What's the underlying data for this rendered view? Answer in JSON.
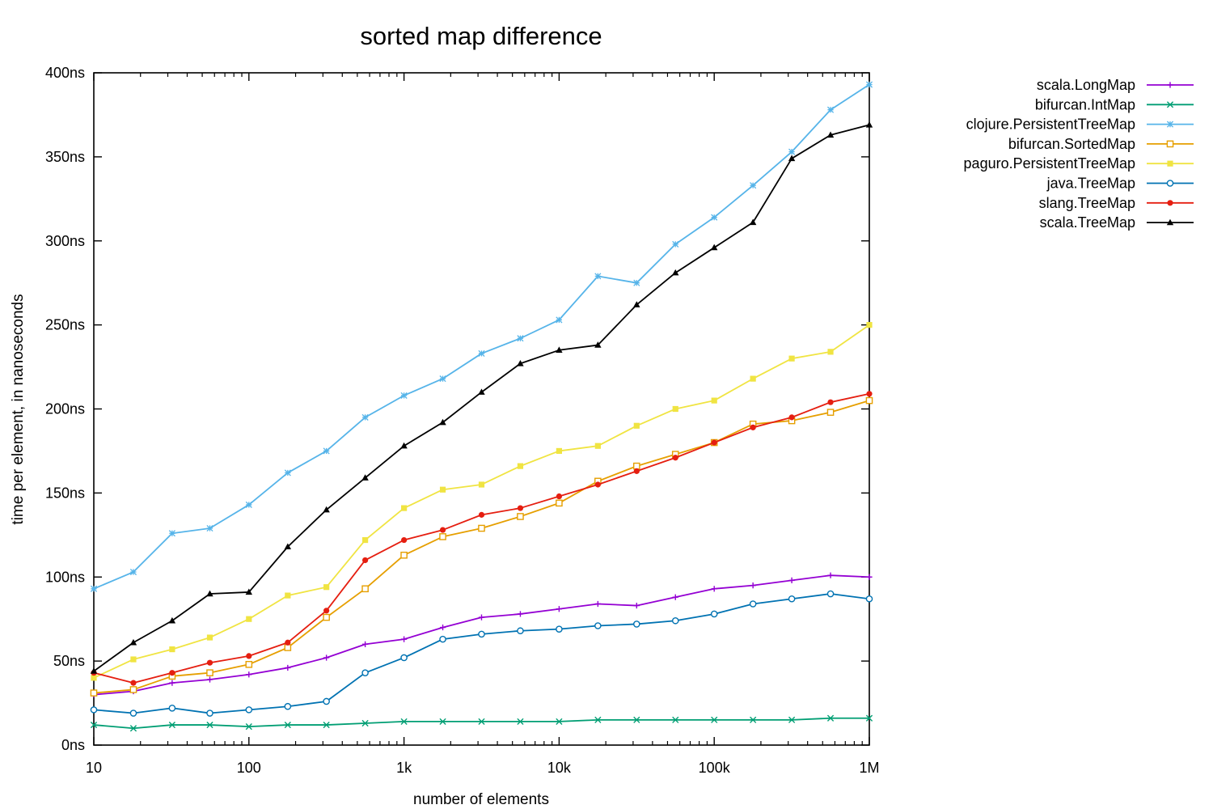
{
  "chart_data": {
    "type": "line",
    "title": "sorted map difference",
    "xlabel": "number of elements",
    "ylabel": "time per element, in nanoseconds",
    "x_scale": "log",
    "xlim": [
      10,
      1000000
    ],
    "ylim": [
      0,
      400
    ],
    "x_ticks": [
      {
        "value": 10,
        "label": "10"
      },
      {
        "value": 100,
        "label": "100"
      },
      {
        "value": 1000,
        "label": "1k"
      },
      {
        "value": 10000,
        "label": "10k"
      },
      {
        "value": 100000,
        "label": "100k"
      },
      {
        "value": 1000000,
        "label": "1M"
      }
    ],
    "y_ticks": [
      {
        "value": 0,
        "label": "0ns"
      },
      {
        "value": 50,
        "label": "50ns"
      },
      {
        "value": 100,
        "label": "100ns"
      },
      {
        "value": 150,
        "label": "150ns"
      },
      {
        "value": 200,
        "label": "200ns"
      },
      {
        "value": 250,
        "label": "250ns"
      },
      {
        "value": 300,
        "label": "300ns"
      },
      {
        "value": 350,
        "label": "350ns"
      },
      {
        "value": 400,
        "label": "400ns"
      }
    ],
    "grid": false,
    "legend_position": "outside-right-top",
    "x": [
      10,
      18,
      32,
      56,
      100,
      178,
      316,
      562,
      1000,
      1778,
      3162,
      5623,
      10000,
      17783,
      31623,
      56234,
      100000,
      177828,
      316228,
      562341,
      1000000
    ],
    "series": [
      {
        "name": "scala.LongMap",
        "color": "#9400d3",
        "marker": "plus",
        "values": [
          30,
          32,
          37,
          39,
          42,
          46,
          52,
          60,
          63,
          70,
          76,
          78,
          81,
          84,
          83,
          88,
          93,
          95,
          98,
          101,
          100
        ]
      },
      {
        "name": "bifurcan.IntMap",
        "color": "#009e73",
        "marker": "cross",
        "values": [
          12,
          10,
          12,
          12,
          11,
          12,
          12,
          13,
          14,
          14,
          14,
          14,
          14,
          15,
          15,
          15,
          15,
          15,
          15,
          16,
          16
        ]
      },
      {
        "name": "clojure.PersistentTreeMap",
        "color": "#56b4e9",
        "marker": "star",
        "values": [
          93,
          103,
          126,
          129,
          143,
          162,
          175,
          195,
          208,
          218,
          233,
          242,
          253,
          279,
          275,
          298,
          314,
          333,
          353,
          378,
          393
        ]
      },
      {
        "name": "bifurcan.SortedMap",
        "color": "#e69f00",
        "marker": "open-square",
        "values": [
          31,
          33,
          41,
          43,
          48,
          58,
          76,
          93,
          113,
          124,
          129,
          136,
          144,
          157,
          166,
          173,
          180,
          191,
          193,
          198,
          205
        ]
      },
      {
        "name": "paguro.PersistentTreeMap",
        "color": "#f0e442",
        "marker": "filled-square",
        "values": [
          40,
          51,
          57,
          64,
          75,
          89,
          94,
          122,
          141,
          152,
          155,
          166,
          175,
          178,
          190,
          200,
          205,
          218,
          230,
          234,
          250
        ]
      },
      {
        "name": "java.TreeMap",
        "color": "#0072b2",
        "marker": "open-circle",
        "values": [
          21,
          19,
          22,
          19,
          21,
          23,
          26,
          43,
          52,
          63,
          66,
          68,
          69,
          71,
          72,
          74,
          78,
          84,
          87,
          90,
          87
        ]
      },
      {
        "name": "slang.TreeMap",
        "color": "#e51e10",
        "marker": "filled-circle",
        "values": [
          43,
          37,
          43,
          49,
          53,
          61,
          80,
          110,
          122,
          128,
          137,
          141,
          148,
          155,
          163,
          171,
          180,
          189,
          195,
          204,
          209
        ]
      },
      {
        "name": "scala.TreeMap",
        "color": "#000000",
        "marker": "filled-triangle",
        "values": [
          44,
          61,
          74,
          90,
          91,
          118,
          140,
          159,
          178,
          192,
          210,
          227,
          235,
          238,
          262,
          281,
          296,
          311,
          349,
          363,
          369
        ]
      }
    ]
  }
}
